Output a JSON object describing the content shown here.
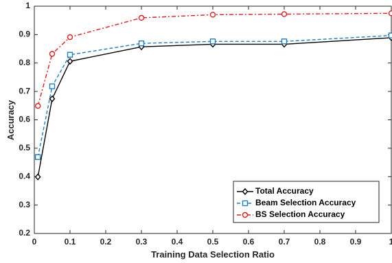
{
  "chart_data": {
    "type": "line",
    "title": "",
    "xlabel": "Training Data Selection Ratio",
    "ylabel": "Accuracy",
    "xlim": [
      0,
      1
    ],
    "ylim": [
      0.2,
      1
    ],
    "xticks": [
      "0",
      "0.1",
      "0.2",
      "0.3",
      "0.4",
      "0.5",
      "0.6",
      "0.7",
      "0.8",
      "0.9",
      "1"
    ],
    "yticks": [
      "0.2",
      "0.3",
      "0.4",
      "0.5",
      "0.6",
      "0.7",
      "0.8",
      "0.9",
      "1"
    ],
    "grid": false,
    "legend_position": "bottom-right",
    "x": [
      0.01,
      0.05,
      0.1,
      0.3,
      0.5,
      0.7,
      1.0
    ],
    "series": [
      {
        "name": "Total Accuracy",
        "values": [
          0.399,
          0.674,
          0.806,
          0.857,
          0.866,
          0.866,
          0.889
        ],
        "color": "#000000",
        "line_style": "solid",
        "marker": "diamond"
      },
      {
        "name": "Beam Selection Accuracy",
        "values": [
          0.469,
          0.718,
          0.829,
          0.869,
          0.876,
          0.876,
          0.897
        ],
        "color": "#1f7fbf",
        "line_style": "dashed",
        "marker": "square"
      },
      {
        "name": "BS Selection Accuracy",
        "values": [
          0.649,
          0.832,
          0.891,
          0.959,
          0.97,
          0.972,
          0.975
        ],
        "color": "#e41a1c",
        "line_style": "dash-dot",
        "marker": "circle"
      }
    ]
  }
}
